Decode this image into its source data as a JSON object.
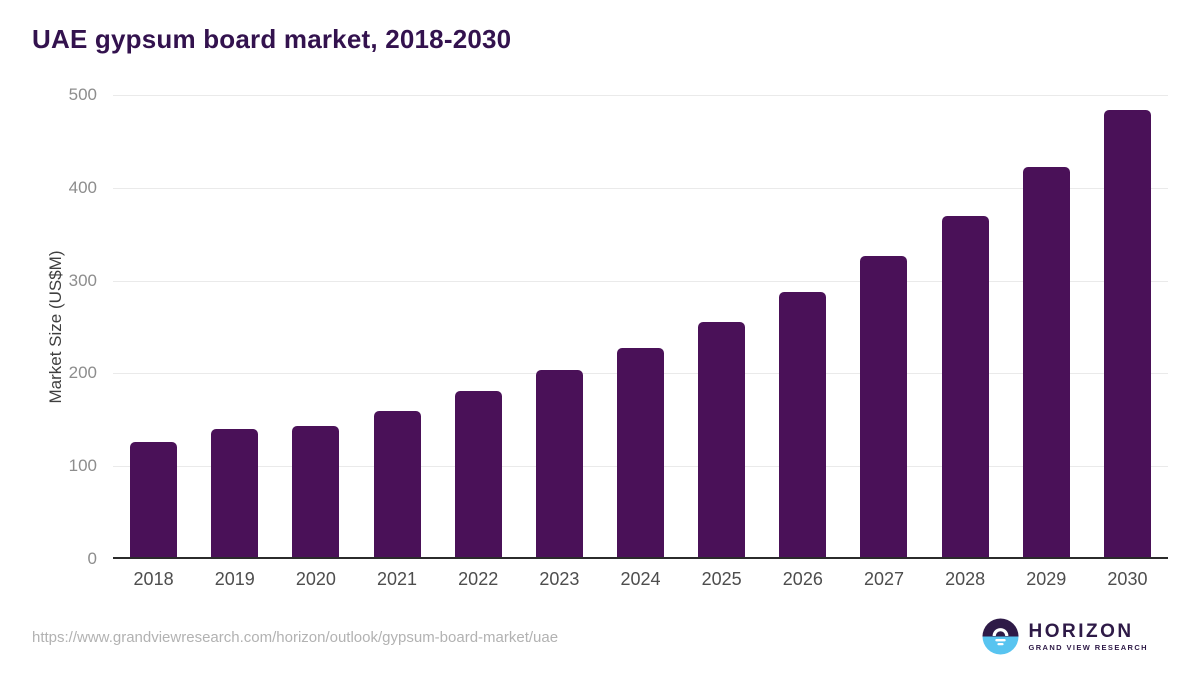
{
  "page": {
    "title": "UAE gypsum board market, 2018-2030",
    "source_url": "https://www.grandviewresearch.com/horizon/outlook/gypsum-board-market/uae"
  },
  "chart_data": {
    "type": "bar",
    "title": "UAE gypsum board market, 2018-2030",
    "categories": [
      "2018",
      "2019",
      "2020",
      "2021",
      "2022",
      "2023",
      "2024",
      "2025",
      "2026",
      "2027",
      "2028",
      "2029",
      "2030"
    ],
    "values": [
      124,
      138,
      141,
      157,
      179,
      201,
      225,
      253,
      286,
      324,
      368,
      420,
      482
    ],
    "xlabel": "",
    "ylabel": "Market Size (US$M)",
    "ylim": [
      0,
      500
    ],
    "yticks": [
      0,
      100,
      200,
      300,
      400,
      500
    ],
    "grid": true,
    "legend": "none",
    "bar_color": "#4a1158"
  },
  "colors": {
    "bar": "#4a1158",
    "title_text": "#33124e",
    "gridline": "#eaeaea",
    "axis_line": "#2b2b2b",
    "ytick_text": "#8d8d8d",
    "xtick_text": "#4d4d4d",
    "url_text": "#b2b2b2",
    "logo_purple": "#2e1a47",
    "logo_blue": "#58c4f0"
  },
  "logo": {
    "icon": "horizon-sunrise-icon",
    "name": "HORIZON",
    "subtitle": "GRAND VIEW RESEARCH"
  }
}
